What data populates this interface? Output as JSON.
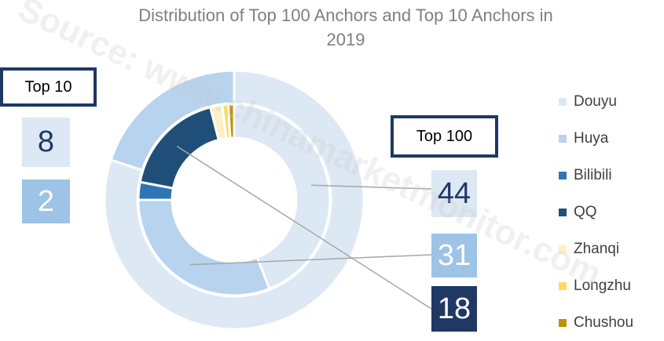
{
  "title_line1": "Distribution of Top 100 Anchors and Top 10 Anchors in",
  "title_line2": "2019",
  "watermark": "Source: www.chinamarketmonitor.com",
  "chart_data": {
    "type": "pie",
    "variant": "nested-donut",
    "title": "Distribution of Top 100 Anchors and Top 10 Anchors in 2019",
    "categories": [
      "Douyu",
      "Huya",
      "Bilibili",
      "QQ",
      "Zhanqi",
      "Longzhu",
      "Chushou"
    ],
    "colors": [
      "#dde8f5",
      "#b8d3ee",
      "#2e75b6",
      "#1f4e79",
      "#fdf0c4",
      "#ffd966",
      "#bf9000"
    ],
    "series": [
      {
        "name": "Top 10",
        "ring": "outer",
        "values": [
          8,
          2,
          0,
          0,
          0,
          0,
          0
        ]
      },
      {
        "name": "Top 100",
        "ring": "inner",
        "values": [
          44,
          31,
          3,
          18,
          2,
          1,
          1
        ]
      }
    ],
    "legend_position": "right"
  },
  "callouts": {
    "top10": {
      "label": "Top 10",
      "values": [
        "8",
        "2"
      ]
    },
    "top100": {
      "label": "Top 100",
      "values": [
        "44",
        "31",
        "18"
      ]
    }
  }
}
